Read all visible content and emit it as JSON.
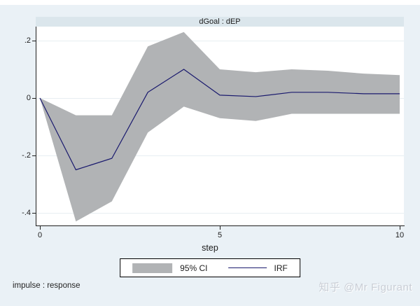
{
  "header": {
    "title": "dGoal : dEP"
  },
  "chart_data": {
    "type": "line",
    "title": "dGoal : dEP",
    "xlabel": "step",
    "ylabel": "",
    "x": [
      0,
      1,
      2,
      3,
      4,
      5,
      6,
      7,
      8,
      9,
      10
    ],
    "series": [
      {
        "name": "IRF",
        "type": "line",
        "color": "#1a1a6e",
        "values": [
          0,
          -0.25,
          -0.21,
          0.02,
          0.1,
          0.01,
          0.005,
          0.02,
          0.02,
          0.015,
          0.015
        ]
      },
      {
        "name": "95% CI",
        "type": "band",
        "color": "#b1b3b5",
        "upper": [
          0,
          -0.06,
          -0.06,
          0.18,
          0.23,
          0.1,
          0.09,
          0.1,
          0.095,
          0.085,
          0.08
        ],
        "lower": [
          0,
          -0.43,
          -0.36,
          -0.12,
          -0.03,
          -0.07,
          -0.08,
          -0.055,
          -0.055,
          -0.055,
          -0.055
        ]
      }
    ],
    "xlim": [
      0,
      10
    ],
    "ylim": [
      -0.47,
      0.25
    ],
    "xticks": [
      {
        "label": "0",
        "value": 0
      },
      {
        "label": "5",
        "value": 5
      },
      {
        "label": "10",
        "value": 10
      }
    ],
    "yticks": [
      {
        "label": ".2",
        "value": 0.2
      },
      {
        "label": "0",
        "value": 0
      },
      {
        "label": "-.2",
        "value": -0.2
      },
      {
        "label": "-.4",
        "value": -0.4
      }
    ],
    "grid": "horizontal-only",
    "legend_position": "bottom-center"
  },
  "legend": {
    "items": [
      {
        "label": "95% CI",
        "swatch": "gray-area"
      },
      {
        "label": "IRF",
        "swatch": "navy-line"
      }
    ]
  },
  "footer": {
    "note": "impulse : response",
    "watermark": "知乎 @Mr Figurant"
  },
  "colors": {
    "background": "#eaf1f6",
    "plot_background": "#ffffff",
    "header_strip": "#dbe6ec",
    "ci_band": "#b1b3b5",
    "irf_line": "#1a1a6e",
    "gridline": "#e7eef2",
    "axis": "#1f1f1f"
  }
}
